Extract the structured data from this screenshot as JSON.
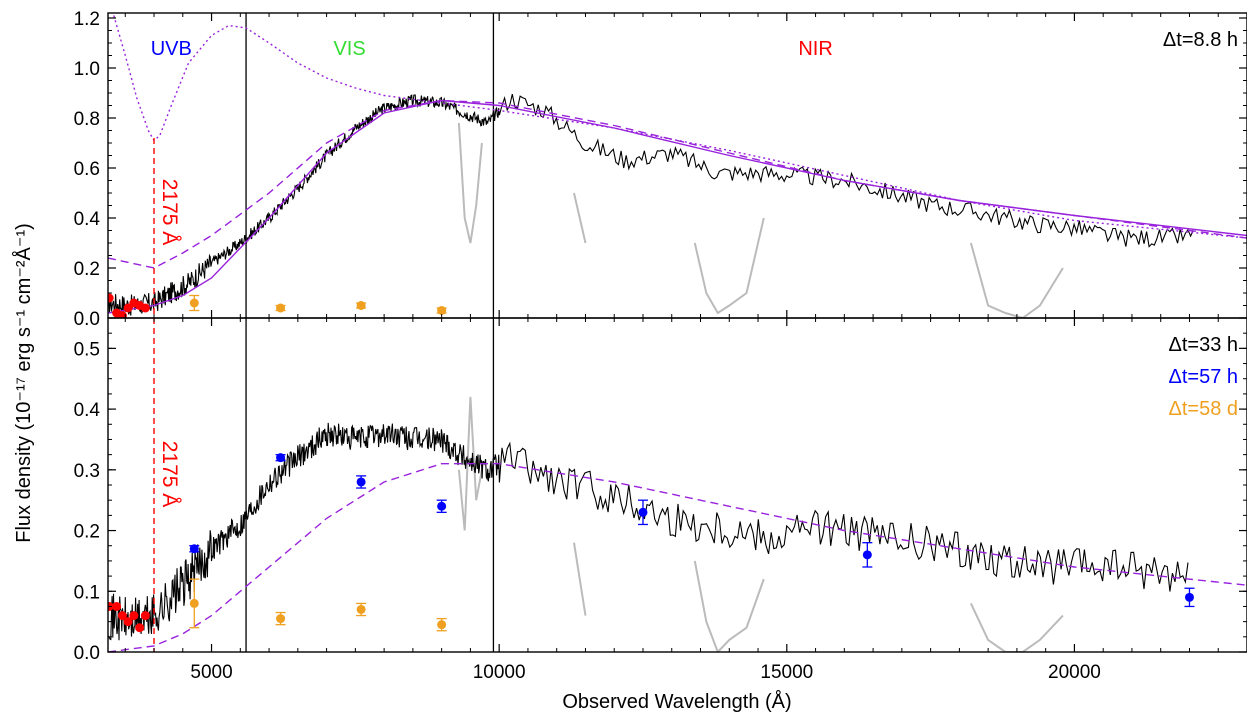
{
  "figure": {
    "xlabel": "Observed Wavelength (Å)",
    "ylabel": "Flux density (10⁻¹⁷ erg s⁻¹ cm⁻²Å⁻¹)"
  },
  "chart_data": [
    {
      "type": "line",
      "panel": "top",
      "xlim": [
        3200,
        23000
      ],
      "ylim": [
        0,
        1.22
      ],
      "xticks": [
        5000,
        10000,
        15000,
        20000
      ],
      "xtick_labels": [
        "5000",
        "10000",
        "15000",
        "20000"
      ],
      "yticks": [
        0,
        0.2,
        0.4,
        0.6,
        0.8,
        1.0,
        1.2
      ],
      "ytick_labels": [
        "0.0",
        "0.2",
        "0.4",
        "0.6",
        "0.8",
        "1.0",
        "1.2"
      ],
      "arm_boundaries": [
        5600,
        9900
      ],
      "arm_labels": [
        {
          "text": "UVB",
          "x": 4300,
          "y": 1.08,
          "color": "#0000ff"
        },
        {
          "text": "VIS",
          "x": 7400,
          "y": 1.08,
          "color": "#33dd33"
        },
        {
          "text": "NIR",
          "x": 15500,
          "y": 1.08,
          "color": "#ff0000"
        }
      ],
      "epoch_label": {
        "text": "Δt=8.8 h",
        "color": "#000000"
      },
      "feature_line": {
        "x": 4000,
        "label": "2175 Å",
        "color": "#ff0000"
      },
      "colors": {
        "spectrum": "#000000",
        "telluric": "#bbbbbb",
        "model": "#9922dd",
        "uvb_points": "#ff0000",
        "late_photometry": "#f0a020"
      },
      "series": [
        {
          "role": "spectrum",
          "x": [
            3200,
            3600,
            4000,
            4300,
            4600,
            5000,
            5500,
            6000,
            6500,
            7000,
            7500,
            8000,
            8500,
            9000,
            9400,
            9800,
            10200,
            10800,
            11500,
            12200,
            13000,
            13800,
            14500,
            15200,
            16000,
            16800,
            17600,
            18400,
            19200,
            20000,
            20800,
            21600,
            22100
          ],
          "y": [
            0.06,
            0.05,
            0.06,
            0.1,
            0.14,
            0.22,
            0.3,
            0.4,
            0.52,
            0.65,
            0.76,
            0.84,
            0.87,
            0.86,
            0.82,
            0.78,
            0.88,
            0.83,
            0.7,
            0.63,
            0.66,
            0.58,
            0.58,
            0.57,
            0.55,
            0.5,
            0.45,
            0.42,
            0.38,
            0.36,
            0.32,
            0.32,
            0.33
          ]
        },
        {
          "role": "telluric",
          "x": [
            9300,
            9400,
            9500,
            9600,
            9700,
            11300,
            11500,
            13400,
            13600,
            13800,
            14000,
            14300,
            14600,
            18200,
            18500,
            18800,
            19100,
            19400,
            19800
          ],
          "y": [
            0.78,
            0.4,
            0.3,
            0.45,
            0.7,
            0.5,
            0.3,
            0.3,
            0.1,
            0.02,
            0.05,
            0.1,
            0.4,
            0.3,
            0.05,
            0.02,
            0.0,
            0.05,
            0.2
          ]
        },
        {
          "role": "model",
          "style": "solid",
          "x": [
            3200,
            4000,
            4500,
            5000,
            6000,
            7000,
            8000,
            9000,
            10000,
            12000,
            14000,
            16000,
            18000,
            20000,
            23000
          ],
          "y": [
            0.02,
            0.05,
            0.09,
            0.16,
            0.4,
            0.66,
            0.82,
            0.87,
            0.85,
            0.76,
            0.65,
            0.55,
            0.47,
            0.41,
            0.33
          ]
        },
        {
          "role": "model",
          "style": "dashed",
          "x": [
            3200,
            4000,
            4500,
            5000,
            6000,
            7000,
            8000,
            9000,
            10000,
            12000,
            14000,
            16000,
            18000,
            20000,
            23000
          ],
          "y": [
            0.24,
            0.2,
            0.26,
            0.33,
            0.5,
            0.7,
            0.83,
            0.87,
            0.86,
            0.77,
            0.66,
            0.55,
            0.47,
            0.41,
            0.32
          ]
        },
        {
          "role": "model",
          "style": "dotted",
          "x": [
            3300,
            3500,
            3700,
            3900,
            4000,
            4100,
            4300,
            4600,
            5000,
            5300,
            5600,
            6000,
            6500,
            7000,
            7500,
            8000,
            9000,
            10000,
            12000,
            14000,
            16000,
            18000,
            20000,
            23000
          ],
          "y": [
            1.21,
            1.05,
            0.88,
            0.75,
            0.71,
            0.73,
            0.85,
            1.02,
            1.13,
            1.17,
            1.16,
            1.1,
            1.02,
            0.96,
            0.92,
            0.89,
            0.86,
            0.83,
            0.76,
            0.67,
            0.57,
            0.47,
            0.39,
            0.32
          ]
        },
        {
          "role": "uvb_points",
          "x": [
            3220,
            3350,
            3450,
            3550,
            3650,
            3750,
            3850
          ],
          "y": [
            0.08,
            0.02,
            0.01,
            0.04,
            0.06,
            0.05,
            0.04
          ]
        },
        {
          "role": "late_photometry",
          "x": [
            4700,
            6200,
            7600,
            9000
          ],
          "y": [
            0.06,
            0.04,
            0.05,
            0.03
          ],
          "yerr": [
            0.03,
            0.01,
            0.01,
            0.01
          ]
        }
      ]
    },
    {
      "type": "line",
      "panel": "bottom",
      "xlim": [
        3200,
        23000
      ],
      "ylim": [
        0,
        0.55
      ],
      "xticks": [
        5000,
        10000,
        15000,
        20000
      ],
      "xtick_labels": [
        "5000",
        "10000",
        "15000",
        "20000"
      ],
      "yticks": [
        0,
        0.1,
        0.2,
        0.3,
        0.4,
        0.5
      ],
      "ytick_labels": [
        "0.0",
        "0.1",
        "0.2",
        "0.3",
        "0.4",
        "0.5"
      ],
      "arm_boundaries": [
        5600,
        9900
      ],
      "feature_line": {
        "x": 4000,
        "label": "2175 Å",
        "color": "#ff0000"
      },
      "legend": [
        {
          "text": "Δt=33 h",
          "color": "#000000"
        },
        {
          "text": "Δt=57 h",
          "color": "#0000ff"
        },
        {
          "text": "Δt=58 d",
          "color": "#f0a020"
        }
      ],
      "colors": {
        "spectrum": "#000000",
        "telluric": "#bbbbbb",
        "model": "#9922dd",
        "uvb_points": "#ff0000",
        "epoch2_photometry": "#0000ff",
        "late_photometry": "#f0a020"
      },
      "series": [
        {
          "role": "spectrum",
          "x": [
            3200,
            3600,
            4000,
            4300,
            4600,
            5000,
            5500,
            6000,
            6500,
            7000,
            7500,
            8000,
            8500,
            9000,
            9400,
            9800,
            10200,
            10600,
            11000,
            11500,
            12200,
            13000,
            13600,
            14200,
            14800,
            15400,
            16000,
            16600,
            17200,
            17800,
            18500,
            19300,
            20000,
            20800,
            21600,
            22000
          ],
          "y": [
            0.06,
            0.05,
            0.06,
            0.09,
            0.12,
            0.17,
            0.21,
            0.28,
            0.32,
            0.36,
            0.35,
            0.36,
            0.35,
            0.35,
            0.32,
            0.3,
            0.32,
            0.3,
            0.28,
            0.27,
            0.25,
            0.22,
            0.21,
            0.2,
            0.19,
            0.21,
            0.2,
            0.19,
            0.18,
            0.17,
            0.16,
            0.14,
            0.14,
            0.14,
            0.13,
            0.13
          ]
        },
        {
          "role": "telluric",
          "x": [
            9300,
            9400,
            9500,
            9600,
            9700,
            11300,
            11500,
            13400,
            13600,
            13800,
            14000,
            14300,
            14600,
            18200,
            18500,
            18800,
            19100,
            19400,
            19800
          ],
          "y": [
            0.3,
            0.2,
            0.42,
            0.25,
            0.3,
            0.18,
            0.06,
            0.15,
            0.05,
            0.0,
            0.02,
            0.04,
            0.12,
            0.08,
            0.02,
            0.0,
            0.0,
            0.02,
            0.06
          ]
        },
        {
          "role": "model",
          "style": "dashed",
          "x": [
            3200,
            4000,
            4500,
            5000,
            6000,
            7000,
            8000,
            9000,
            10000,
            12000,
            14000,
            16000,
            18000,
            20000,
            23000
          ],
          "y": [
            0.0,
            0.01,
            0.03,
            0.06,
            0.14,
            0.22,
            0.28,
            0.31,
            0.31,
            0.28,
            0.24,
            0.2,
            0.17,
            0.14,
            0.11
          ]
        },
        {
          "role": "uvb_points",
          "x": [
            3220,
            3350,
            3450,
            3550,
            3650,
            3750,
            3850
          ],
          "y": [
            0.075,
            0.075,
            0.06,
            0.05,
            0.06,
            0.04,
            0.06
          ]
        },
        {
          "role": "epoch2_photometry",
          "x": [
            4700,
            6200,
            7600,
            9000,
            12500,
            16400,
            22000
          ],
          "y": [
            0.17,
            0.32,
            0.28,
            0.24,
            0.23,
            0.16,
            0.09
          ],
          "yerr": [
            0.005,
            0.005,
            0.01,
            0.01,
            0.02,
            0.02,
            0.015
          ]
        },
        {
          "role": "late_photometry",
          "x": [
            4700,
            6200,
            7600,
            9000
          ],
          "y": [
            0.08,
            0.055,
            0.07,
            0.045
          ],
          "yerr": [
            0.04,
            0.01,
            0.01,
            0.01
          ]
        }
      ]
    }
  ]
}
